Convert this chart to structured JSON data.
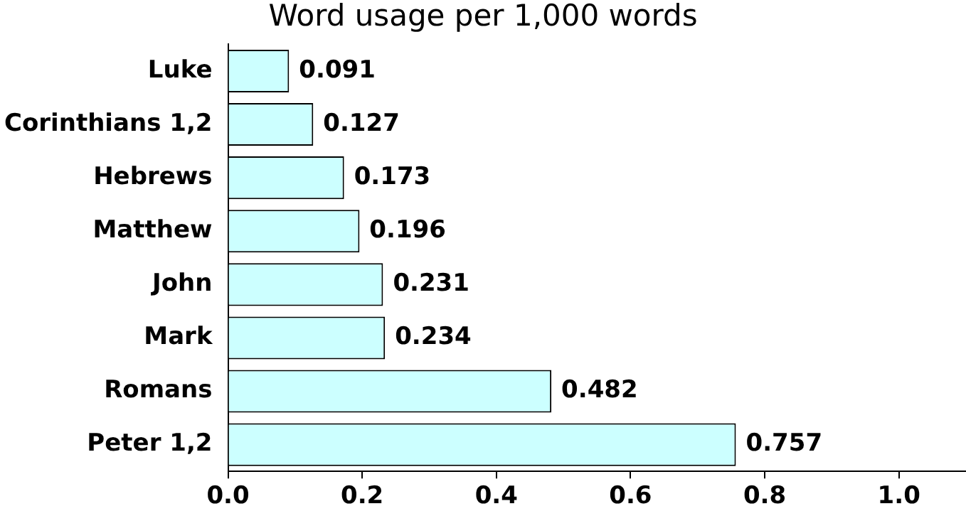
{
  "chart_data": {
    "type": "bar",
    "orientation": "horizontal",
    "title": "Word usage per 1,000 words",
    "categories": [
      "Luke",
      "Corinthians 1,2",
      "Hebrews",
      "Matthew",
      "John",
      "Mark",
      "Romans",
      "Peter 1,2"
    ],
    "values": [
      0.091,
      0.127,
      0.173,
      0.196,
      0.231,
      0.234,
      0.482,
      0.757
    ],
    "color": "#ccffff",
    "data_labels": true,
    "grid": false,
    "legend": false,
    "xlim": [
      0,
      1.1
    ],
    "xticks": [
      {
        "value": 0,
        "label": "0.0"
      },
      {
        "value": 0.2,
        "label": "0.2"
      },
      {
        "value": 0.4,
        "label": "0.4"
      },
      {
        "value": 0.6,
        "label": "0.6"
      },
      {
        "value": 0.8,
        "label": "0.8"
      },
      {
        "value": 1.0,
        "label": "1.0"
      }
    ]
  }
}
